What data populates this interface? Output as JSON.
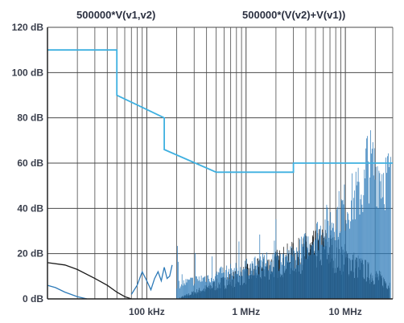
{
  "chart_data": {
    "type": "line",
    "legend_position": "top",
    "legend": [
      "500000*V(v1,v2)",
      "500000*(V(v2)+V(v1))"
    ],
    "y_tick_labels": [
      "0 dB",
      "20 dB",
      "40 dB",
      "60 dB",
      "80 dB",
      "100 dB",
      "120 dB"
    ],
    "y_ticks": [
      0,
      20,
      40,
      60,
      80,
      100,
      120
    ],
    "ylim": [
      0,
      120
    ],
    "x_tick_labels": [
      "100 kHz",
      "1 MHz",
      "10 MHz"
    ],
    "x_ticks": [
      100000,
      1000000,
      10000000
    ],
    "xlim": [
      10000,
      30000000
    ],
    "x_scale": "log",
    "grid": true,
    "series": [
      {
        "color": "#3fb0e0",
        "x": [
          10000,
          50000,
          50000,
          150000,
          150000,
          500000,
          500000,
          3000000,
          3000000,
          30000000
        ],
        "y": [
          110,
          110,
          90,
          80,
          66,
          56,
          56,
          56,
          60,
          60
        ]
      },
      {
        "color": "#1a1a1a",
        "x": [
          10000,
          15000,
          20000,
          30000,
          40000,
          50000,
          60000,
          70000
        ],
        "y": [
          16,
          15,
          13,
          9,
          6,
          3,
          1,
          0
        ]
      },
      {
        "color": "#2d7ab8",
        "x": [
          10000,
          12000,
          15000,
          20000,
          25000
        ],
        "y": [
          6,
          5,
          3,
          1,
          0
        ]
      },
      {
        "color": "#2d7ab8",
        "x": [
          70000,
          80000,
          90000,
          100000,
          110000,
          120000,
          130000,
          140000,
          150000,
          160000,
          170000,
          180000
        ],
        "y": [
          2,
          6,
          12,
          8,
          4,
          9,
          12,
          8,
          14,
          9,
          10,
          15
        ]
      }
    ]
  }
}
